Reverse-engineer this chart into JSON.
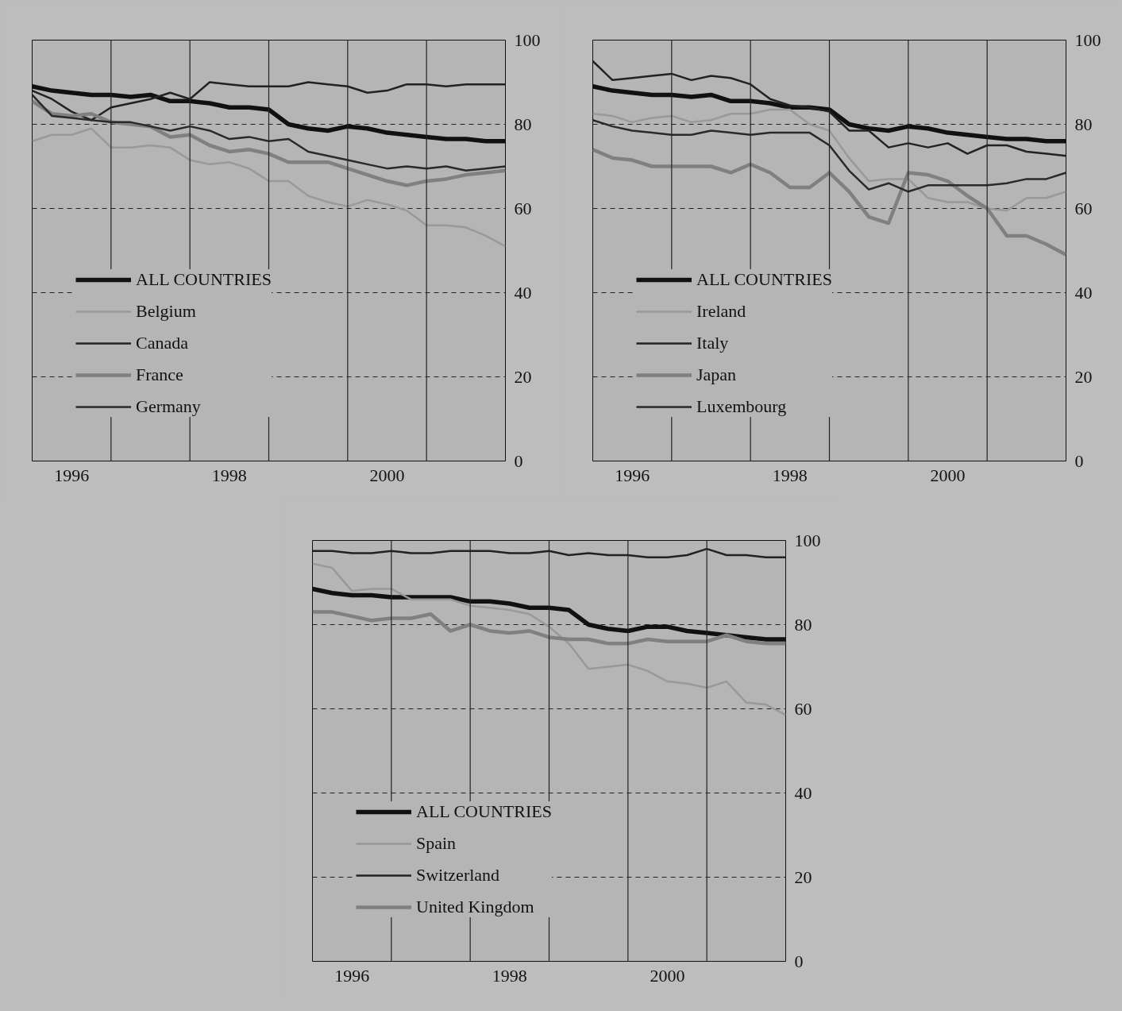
{
  "chart_data": [
    {
      "type": "line",
      "x": [
        1996,
        1996.25,
        1996.5,
        1996.75,
        1997,
        1997.25,
        1997.5,
        1997.75,
        1998,
        1998.25,
        1998.5,
        1998.75,
        1999,
        1999.25,
        1999.5,
        1999.75,
        2000,
        2000.25,
        2000.5,
        2000.75,
        2001,
        2001.25,
        2001.5,
        2001.75,
        2002
      ],
      "xlim": [
        1996,
        2002
      ],
      "xticks": [
        {
          "value": 1996.5,
          "label": "1996"
        },
        {
          "value": 1998.5,
          "label": "1998"
        },
        {
          "value": 2000.5,
          "label": "2000"
        }
      ],
      "ylim": [
        0,
        100
      ],
      "yticks": [
        0,
        20,
        40,
        60,
        80,
        100
      ],
      "grid": "y",
      "legend": "bottom left",
      "line_style": "solid",
      "ref_lines": [
        {
          "axis": "x",
          "value": 1997,
          "color": "#222222"
        },
        {
          "axis": "x",
          "value": 1998,
          "color": "#222222"
        },
        {
          "axis": "x",
          "value": 1999,
          "color": "#222222"
        },
        {
          "axis": "x",
          "value": 2000,
          "color": "#222222"
        },
        {
          "axis": "x",
          "value": 2001,
          "color": "#222222"
        }
      ],
      "series": [
        {
          "name": "ALL COUNTRIES",
          "color": "#111111",
          "values": [
            89,
            88,
            87.5,
            87,
            87,
            86.5,
            87,
            85.5,
            85.5,
            85,
            84,
            84,
            83.5,
            80,
            79,
            78.5,
            79.5,
            79,
            78,
            77.5,
            77,
            76.5,
            76.5,
            76,
            76
          ]
        },
        {
          "name": "Belgium",
          "color": "#999999",
          "values": [
            76,
            77.5,
            77.5,
            79,
            74.5,
            74.5,
            75,
            74.5,
            71.5,
            70.5,
            71,
            69.5,
            66.5,
            66.5,
            63,
            61.5,
            60.5,
            62,
            61,
            59.5,
            56,
            56,
            55.5,
            53.5,
            51
          ]
        },
        {
          "name": "Canada",
          "color": "#222222",
          "values": [
            88,
            86,
            83,
            81,
            84,
            85,
            86,
            87.5,
            86,
            90,
            89.5,
            89,
            89,
            89,
            90,
            89.5,
            89,
            87.5,
            88,
            89.5,
            89.5,
            89,
            89.5,
            89.5,
            89.5
          ]
        },
        {
          "name": "France",
          "color": "#808080",
          "values": [
            85.5,
            82.5,
            82,
            82.5,
            80.5,
            80,
            79.5,
            77,
            77.5,
            75,
            73.5,
            74,
            73,
            71,
            71,
            71,
            69.5,
            68,
            66.5,
            65.5,
            66.5,
            67,
            68,
            68.5,
            69
          ]
        },
        {
          "name": "Germany",
          "color": "#2a2a2a",
          "values": [
            87,
            82,
            81.5,
            81,
            80.5,
            80.5,
            79.5,
            78.5,
            79.5,
            78.5,
            76.5,
            77,
            76,
            76.5,
            73.5,
            72.5,
            71.5,
            70.5,
            69.5,
            70,
            69.5,
            70,
            69,
            69.5,
            70
          ]
        }
      ]
    },
    {
      "type": "line",
      "x": [
        1996,
        1996.25,
        1996.5,
        1996.75,
        1997,
        1997.25,
        1997.5,
        1997.75,
        1998,
        1998.25,
        1998.5,
        1998.75,
        1999,
        1999.25,
        1999.5,
        1999.75,
        2000,
        2000.25,
        2000.5,
        2000.75,
        2001,
        2001.25,
        2001.5,
        2001.75,
        2002
      ],
      "xlim": [
        1996,
        2002
      ],
      "xticks": [
        {
          "value": 1996.5,
          "label": "1996"
        },
        {
          "value": 1998.5,
          "label": "1998"
        },
        {
          "value": 2000.5,
          "label": "2000"
        }
      ],
      "ylim": [
        0,
        100
      ],
      "yticks": [
        0,
        20,
        40,
        60,
        80,
        100
      ],
      "grid": "y",
      "legend": "bottom left",
      "line_style": "solid",
      "ref_lines": [
        {
          "axis": "x",
          "value": 1997,
          "color": "#222222"
        },
        {
          "axis": "x",
          "value": 1998,
          "color": "#222222"
        },
        {
          "axis": "x",
          "value": 1999,
          "color": "#222222"
        },
        {
          "axis": "x",
          "value": 2000,
          "color": "#222222"
        },
        {
          "axis": "x",
          "value": 2001,
          "color": "#222222"
        }
      ],
      "series": [
        {
          "name": "ALL COUNTRIES",
          "color": "#111111",
          "values": [
            89,
            88,
            87.5,
            87,
            87,
            86.5,
            87,
            85.5,
            85.5,
            85,
            84,
            84,
            83.5,
            80,
            79,
            78.5,
            79.5,
            79,
            78,
            77.5,
            77,
            76.5,
            76.5,
            76,
            76
          ]
        },
        {
          "name": "Ireland",
          "color": "#999999",
          "values": [
            82.5,
            82,
            80.5,
            81.5,
            82,
            80.5,
            81,
            82.5,
            82.5,
            83.5,
            83.5,
            80,
            78.5,
            72,
            66.5,
            67,
            67,
            62.5,
            61.5,
            61.5,
            60,
            59.5,
            62.5,
            62.5,
            64
          ]
        },
        {
          "name": "Italy",
          "color": "#222222",
          "values": [
            95,
            90.5,
            91,
            91.5,
            92,
            90.5,
            91.5,
            91,
            89.5,
            86,
            84.5,
            84,
            83,
            78.5,
            78.5,
            74.5,
            75.5,
            74.5,
            75.5,
            73,
            75,
            75,
            73.5,
            73,
            72.5
          ]
        },
        {
          "name": "Japan",
          "color": "#808080",
          "values": [
            74,
            72,
            71.5,
            70,
            70,
            70,
            70,
            68.5,
            70.5,
            68.5,
            65,
            65,
            68.5,
            64,
            58,
            56.5,
            68.5,
            68,
            66.5,
            63,
            60,
            53.5,
            53.5,
            51.5,
            49
          ]
        },
        {
          "name": "Luxembourg",
          "color": "#2a2a2a",
          "values": [
            81,
            79.5,
            78.5,
            78,
            77.5,
            77.5,
            78.5,
            78,
            77.5,
            78,
            78,
            78,
            75,
            69,
            64.5,
            66,
            64,
            65.5,
            65.5,
            65.5,
            65.5,
            66,
            67,
            67,
            68.5
          ]
        }
      ]
    },
    {
      "type": "line",
      "x": [
        1996,
        1996.25,
        1996.5,
        1996.75,
        1997,
        1997.25,
        1997.5,
        1997.75,
        1998,
        1998.25,
        1998.5,
        1998.75,
        1999,
        1999.25,
        1999.5,
        1999.75,
        2000,
        2000.25,
        2000.5,
        2000.75,
        2001,
        2001.25,
        2001.5,
        2001.75,
        2002
      ],
      "xlim": [
        1996,
        2002
      ],
      "xticks": [
        {
          "value": 1996.5,
          "label": "1996"
        },
        {
          "value": 1998.5,
          "label": "1998"
        },
        {
          "value": 2000.5,
          "label": "2000"
        }
      ],
      "ylim": [
        0,
        100
      ],
      "yticks": [
        0,
        20,
        40,
        60,
        80,
        100
      ],
      "grid": "y",
      "legend": "bottom left",
      "line_style": "solid",
      "ref_lines": [
        {
          "axis": "x",
          "value": 1997,
          "color": "#222222"
        },
        {
          "axis": "x",
          "value": 1998,
          "color": "#222222"
        },
        {
          "axis": "x",
          "value": 1999,
          "color": "#222222"
        },
        {
          "axis": "x",
          "value": 2000,
          "color": "#222222"
        },
        {
          "axis": "x",
          "value": 2001,
          "color": "#222222"
        }
      ],
      "series": [
        {
          "name": "ALL COUNTRIES",
          "color": "#111111",
          "values": [
            88.5,
            87.5,
            87,
            87,
            86.5,
            86.5,
            86.5,
            86.5,
            85.5,
            85.5,
            85,
            84,
            84,
            83.5,
            80,
            79,
            78.5,
            79.5,
            79.5,
            78.5,
            78,
            77.5,
            77,
            76.5,
            76.5
          ]
        },
        {
          "name": "Spain",
          "color": "#999999",
          "values": [
            94.5,
            93.5,
            88,
            88.5,
            88.5,
            86,
            86,
            86,
            84.5,
            84,
            83.5,
            82.5,
            79.5,
            75.5,
            69.5,
            70,
            70.5,
            69,
            66.5,
            66,
            65,
            66.5,
            61.5,
            61,
            58.5
          ]
        },
        {
          "name": "Switzerland",
          "color": "#222222",
          "values": [
            97.5,
            97.5,
            97,
            97,
            97.5,
            97,
            97,
            97.5,
            97.5,
            97.5,
            97,
            97,
            97.5,
            96.5,
            97,
            96.5,
            96.5,
            96,
            96,
            96.5,
            98,
            96.5,
            96.5,
            96,
            96
          ]
        },
        {
          "name": "United Kingdom",
          "color": "#808080",
          "values": [
            83,
            83,
            82,
            81,
            81.5,
            81.5,
            82.5,
            78.5,
            80,
            78.5,
            78,
            78.5,
            77,
            76.5,
            76.5,
            75.5,
            75.5,
            76.5,
            76,
            76,
            76,
            77.5,
            76,
            75.5,
            75.5
          ]
        }
      ]
    }
  ]
}
